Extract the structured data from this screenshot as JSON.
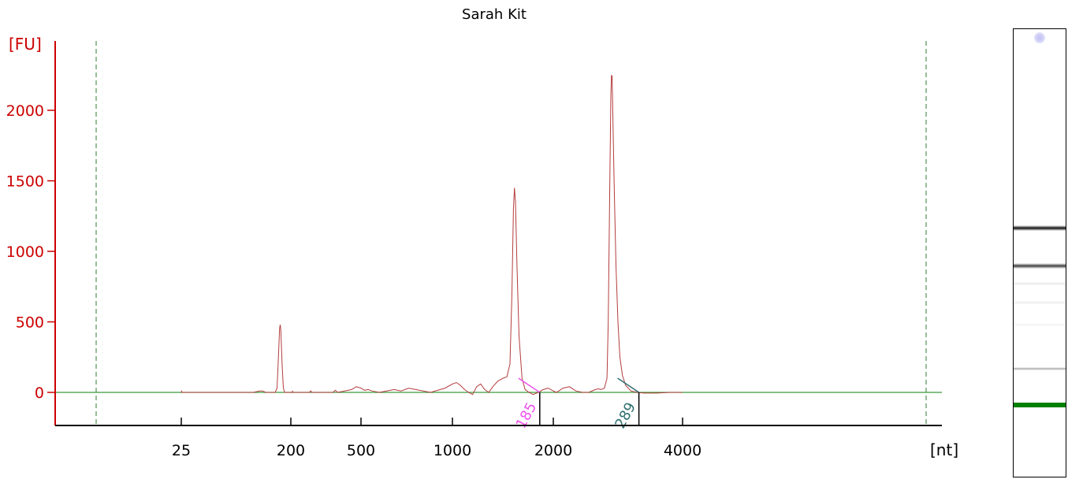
{
  "chart_data": {
    "type": "line",
    "title": "Sarah Kit",
    "ylabel": "[FU]",
    "xlabel": "[nt]",
    "ylim": [
      -230,
      2480
    ],
    "yticks": [
      0,
      500,
      1000,
      1500,
      2000
    ],
    "xticks": [
      "25",
      "200",
      "500",
      "1000",
      "2000",
      "4000"
    ],
    "series": [
      {
        "points": [
          [
            25,
            0
          ],
          [
            25.5,
            8
          ],
          [
            26,
            0
          ],
          [
            140,
            0
          ],
          [
            150,
            10
          ],
          [
            155,
            10
          ],
          [
            160,
            0
          ],
          [
            175,
            0
          ],
          [
            178,
            30
          ],
          [
            180,
            230
          ],
          [
            182,
            450
          ],
          [
            183,
            480
          ],
          [
            184,
            440
          ],
          [
            186,
            200
          ],
          [
            188,
            30
          ],
          [
            190,
            0
          ],
          [
            205,
            0
          ],
          [
            207,
            8
          ],
          [
            210,
            0
          ],
          [
            280,
            0
          ],
          [
            285,
            10
          ],
          [
            290,
            0
          ],
          [
            380,
            0
          ],
          [
            390,
            15
          ],
          [
            400,
            0
          ],
          [
            430,
            10
          ],
          [
            460,
            20
          ],
          [
            480,
            40
          ],
          [
            500,
            30
          ],
          [
            520,
            15
          ],
          [
            540,
            20
          ],
          [
            560,
            10
          ],
          [
            600,
            0
          ],
          [
            640,
            10
          ],
          [
            680,
            20
          ],
          [
            720,
            10
          ],
          [
            760,
            30
          ],
          [
            800,
            20
          ],
          [
            840,
            10
          ],
          [
            880,
            0
          ],
          [
            960,
            30
          ],
          [
            1000,
            60
          ],
          [
            1040,
            70
          ],
          [
            1080,
            50
          ],
          [
            1120,
            20
          ],
          [
            1160,
            0
          ],
          [
            1200,
            -15
          ],
          [
            1240,
            40
          ],
          [
            1280,
            60
          ],
          [
            1320,
            20
          ],
          [
            1360,
            0
          ],
          [
            1400,
            40
          ],
          [
            1450,
            80
          ],
          [
            1500,
            100
          ],
          [
            1540,
            110
          ],
          [
            1570,
            200
          ],
          [
            1590,
            700
          ],
          [
            1605,
            1300
          ],
          [
            1615,
            1450
          ],
          [
            1625,
            1350
          ],
          [
            1640,
            900
          ],
          [
            1660,
            400
          ],
          [
            1690,
            100
          ],
          [
            1720,
            20
          ],
          [
            1760,
            0
          ],
          [
            1800,
            -15
          ],
          [
            1850,
            0
          ],
          [
            1900,
            20
          ],
          [
            1950,
            30
          ],
          [
            2000,
            10
          ],
          [
            2050,
            0
          ],
          [
            2150,
            30
          ],
          [
            2250,
            40
          ],
          [
            2350,
            10
          ],
          [
            2450,
            0
          ],
          [
            2550,
            0
          ],
          [
            2650,
            20
          ],
          [
            2700,
            25
          ],
          [
            2740,
            20
          ],
          [
            2790,
            30
          ],
          [
            2830,
            100
          ],
          [
            2850,
            500
          ],
          [
            2870,
            1300
          ],
          [
            2890,
            2100
          ],
          [
            2900,
            2250
          ],
          [
            2910,
            2240
          ],
          [
            2920,
            2000
          ],
          [
            2940,
            1500
          ],
          [
            2970,
            900
          ],
          [
            3000,
            500
          ],
          [
            3030,
            250
          ],
          [
            3070,
            120
          ],
          [
            3120,
            50
          ],
          [
            3200,
            10
          ],
          [
            3300,
            0
          ],
          [
            3400,
            -5
          ],
          [
            3600,
            -5
          ],
          [
            3800,
            0
          ],
          [
            4000,
            0
          ]
        ]
      }
    ],
    "peak_labels": [
      {
        "text": "185",
        "x": 1850,
        "color": "#ee55ee"
      },
      {
        "text": "289",
        "x": 3300,
        "color": "#2f6f6f"
      }
    ],
    "grid": false
  },
  "gel": {
    "bands": [
      {
        "position": 0.443,
        "level": 1.0
      },
      {
        "position": 0.527,
        "level": 0.8
      },
      {
        "position": 0.567,
        "level": 0.1
      },
      {
        "position": 0.608,
        "level": 0.08
      },
      {
        "position": 0.658,
        "level": 0.05
      },
      {
        "position": 0.757,
        "level": 0.35
      }
    ],
    "marker_position": 0.837,
    "marker_color": "#008000"
  },
  "colors": {
    "axis": "#cc0000",
    "trace": "#b43c3c",
    "baseline": "#3a9a3a",
    "window_lines": "#2e7d32"
  }
}
